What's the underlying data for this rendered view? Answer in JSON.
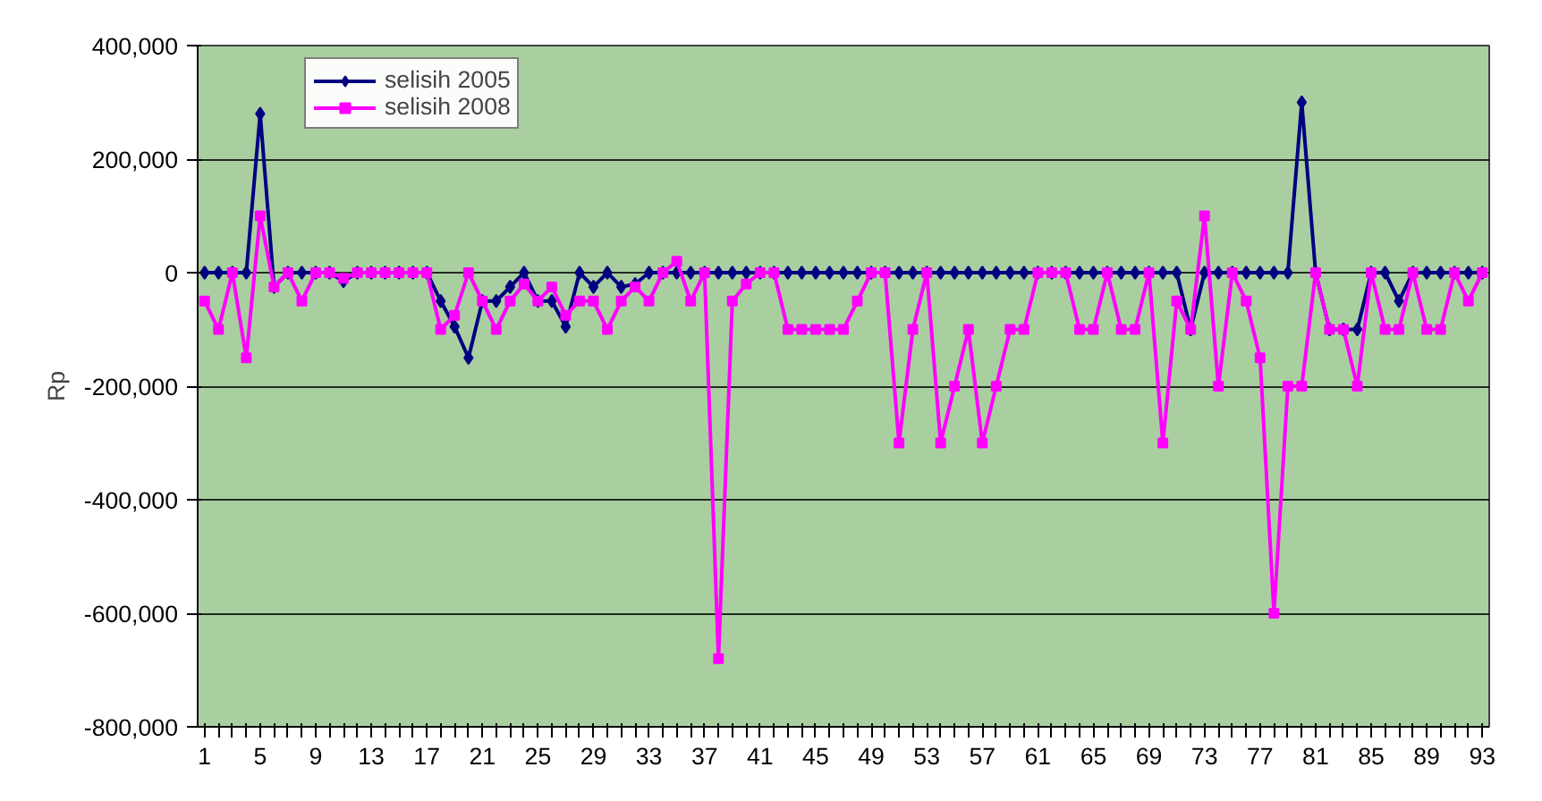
{
  "chart_data": {
    "type": "line",
    "ylabel": "Rp",
    "categories": [
      "1",
      null,
      null,
      null,
      "5",
      null,
      null,
      null,
      "9",
      null,
      null,
      null,
      "13",
      null,
      null,
      null,
      "17",
      null,
      null,
      null,
      "21",
      null,
      null,
      null,
      "25",
      null,
      null,
      null,
      "29",
      null,
      null,
      null,
      "33",
      null,
      null,
      null,
      "37",
      null,
      null,
      null,
      "41",
      null,
      null,
      null,
      "45",
      null,
      null,
      null,
      "49",
      null,
      null,
      null,
      "53",
      null,
      null,
      null,
      "57",
      null,
      null,
      null,
      "61",
      null,
      null,
      null,
      "65",
      null,
      null,
      null,
      "69",
      null,
      null,
      null,
      "73",
      null,
      null,
      null,
      "77",
      null,
      null,
      null,
      "81",
      null,
      null,
      null,
      "85",
      null,
      null,
      null,
      "89",
      null,
      null,
      null,
      "93"
    ],
    "series": [
      {
        "name": "selisih 2005",
        "color": "#000080",
        "marker": "diamond",
        "values": [
          0,
          0,
          0,
          0,
          280000,
          -25000,
          0,
          0,
          0,
          0,
          -15000,
          0,
          0,
          0,
          0,
          0,
          0,
          -50000,
          -95000,
          -150000,
          -50000,
          -50000,
          -25000,
          0,
          -50000,
          -50000,
          -95000,
          0,
          -25000,
          0,
          -25000,
          -20000,
          0,
          0,
          0,
          0,
          0,
          0,
          0,
          0,
          0,
          0,
          0,
          0,
          0,
          0,
          0,
          0,
          0,
          0,
          0,
          0,
          0,
          0,
          0,
          0,
          0,
          0,
          0,
          0,
          0,
          0,
          0,
          0,
          0,
          0,
          0,
          0,
          0,
          0,
          0,
          -100000,
          0,
          0,
          0,
          0,
          0,
          0,
          0,
          300000,
          0,
          -100000,
          -100000,
          -100000,
          0,
          0,
          -50000,
          0,
          0,
          0,
          0,
          0,
          0
        ]
      },
      {
        "name": "selisih 2008",
        "color": "#ff00ff",
        "marker": "square",
        "values": [
          -50000,
          -100000,
          0,
          -150000,
          100000,
          -25000,
          0,
          -50000,
          0,
          0,
          -10000,
          0,
          0,
          0,
          0,
          0,
          0,
          -100000,
          -75000,
          0,
          -50000,
          -100000,
          -50000,
          -20000,
          -50000,
          -25000,
          -75000,
          -50000,
          -50000,
          -100000,
          -50000,
          -25000,
          -50000,
          0,
          20000,
          -50000,
          0,
          -680000,
          -50000,
          -20000,
          0,
          0,
          -100000,
          -100000,
          -100000,
          -100000,
          -100000,
          -50000,
          0,
          0,
          -300000,
          -100000,
          0,
          -300000,
          -200000,
          -100000,
          -300000,
          -200000,
          -100000,
          -100000,
          0,
          0,
          0,
          -100000,
          -100000,
          0,
          -100000,
          -100000,
          0,
          -300000,
          -50000,
          -100000,
          100000,
          -200000,
          0,
          -50000,
          -150000,
          -600000,
          -200000,
          -200000,
          0,
          -100000,
          -100000,
          -200000,
          0,
          -100000,
          -100000,
          0,
          -100000,
          -100000,
          0,
          -50000,
          0
        ]
      }
    ],
    "ylim": [
      -800000,
      400000
    ],
    "yticks": [
      {
        "value": -800000,
        "label": "-800,000"
      },
      {
        "value": -600000,
        "label": "-600,000"
      },
      {
        "value": -400000,
        "label": "-400,000"
      },
      {
        "value": -200000,
        "label": "-200,000"
      },
      {
        "value": 0,
        "label": "0"
      },
      {
        "value": 200000,
        "label": "200,000"
      },
      {
        "value": 400000,
        "label": "400,000"
      }
    ],
    "grid": "y",
    "legend": "top left",
    "line_style": "solid"
  }
}
